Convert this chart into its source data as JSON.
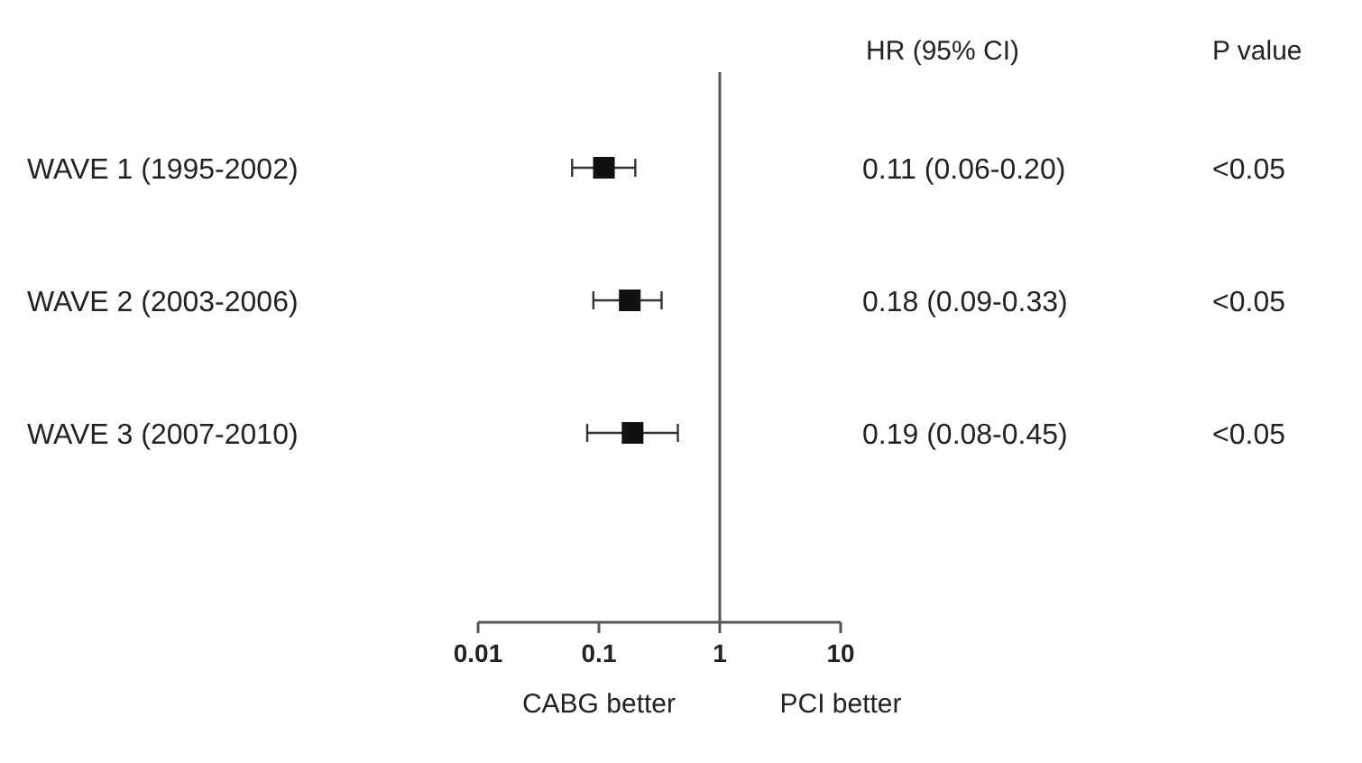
{
  "chart_data": {
    "type": "scatter",
    "orientation": "horizontal",
    "categories": [
      "WAVE 1 (1995-2002)",
      "WAVE 2 (2003-2006)",
      "WAVE 3 (2007-2010)"
    ],
    "values": [
      0.11,
      0.18,
      0.19
    ],
    "errors": [
      [
        0.06,
        0.2
      ],
      [
        0.09,
        0.33
      ],
      [
        0.08,
        0.45
      ]
    ],
    "value_labels": [
      "0.11 (0.06-0.20)",
      "0.18 (0.09-0.33)",
      "0.19 (0.08-0.45)"
    ],
    "color": "#111111",
    "marker": "square",
    "log": "x",
    "xlim": [
      0.01,
      10
    ],
    "xticks": [
      0.01,
      0.1,
      1,
      10
    ],
    "ref_lines": [
      {
        "axis": "x",
        "value": 1,
        "color": "#555555"
      }
    ],
    "grid": false,
    "annotations": [
      "HR  (95% CI)",
      "P value",
      "<0.05",
      "<0.05",
      "<0.05",
      "CABG better",
      "PCI better"
    ]
  }
}
